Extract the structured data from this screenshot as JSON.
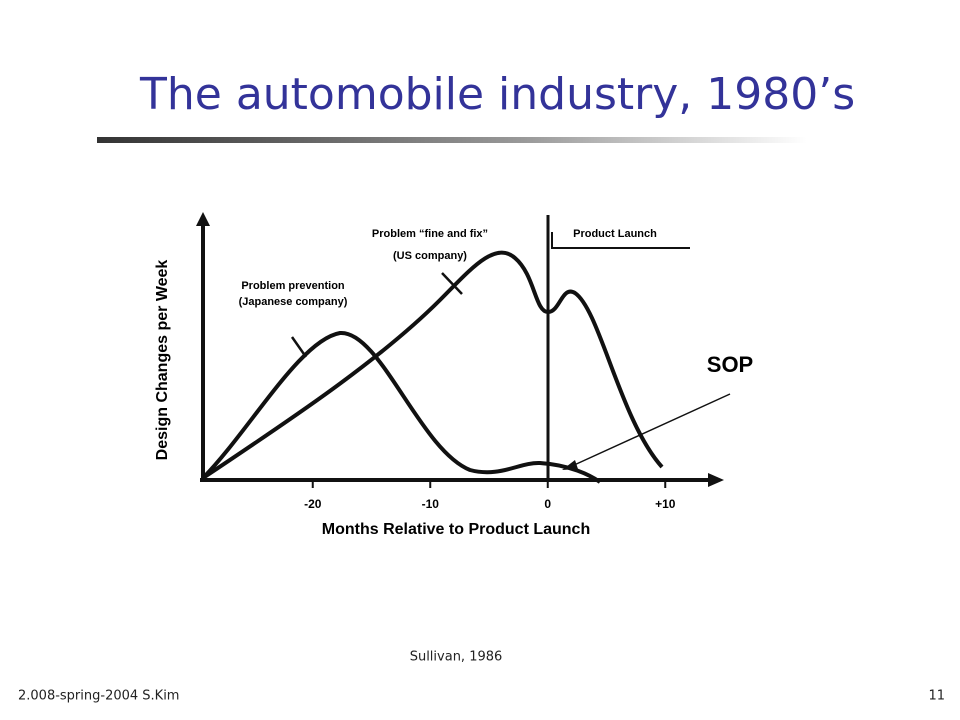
{
  "slide": {
    "title": "The automobile industry, 1980’s",
    "source": "Sullivan, 1986",
    "footer": "2.008-spring-2004 S.Kim",
    "page_number": "11"
  },
  "figure": {
    "x_label": "Months Relative to Product Launch",
    "y_label": "Design Changes per Week",
    "xlim": [
      -29,
      15
    ],
    "xticks": [
      -20,
      -10,
      0,
      {
        "value": 10,
        "label": "+10"
      }
    ],
    "annotations": [
      "Problem prevention",
      "(Japanese company)",
      "Problem “fine and fix”",
      "(US company)",
      "Product Launch",
      "SOP"
    ]
  }
}
